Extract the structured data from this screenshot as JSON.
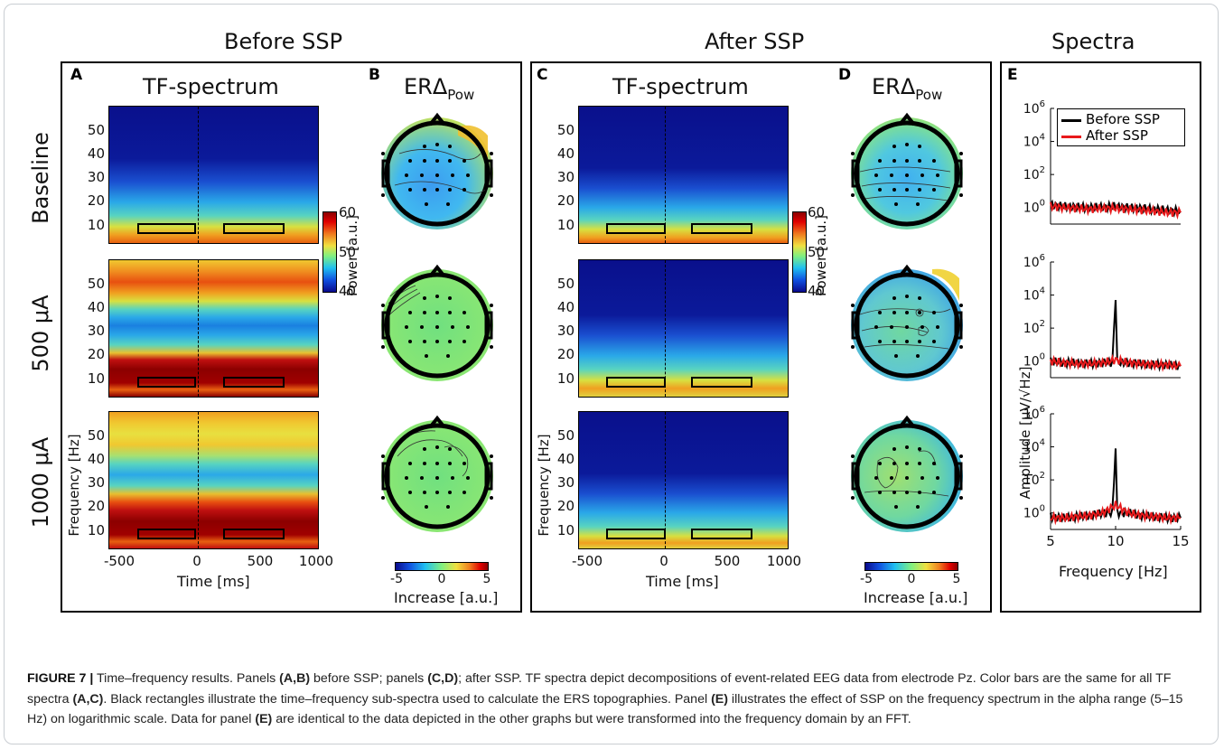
{
  "sections": {
    "before": "Before SSP",
    "after": "After SSP",
    "spectra": "Spectra"
  },
  "panels": {
    "A": "A",
    "B": "B",
    "C": "C",
    "D": "D",
    "E": "E",
    "tf_title": "TF-spectrum",
    "er_title_main": "ERΔ",
    "er_title_sub": "Pow"
  },
  "rows": [
    "Baseline",
    "500 μA",
    "1000 μA"
  ],
  "tf_axes": {
    "ylabel": "Frequency [Hz]",
    "xlabel": "Time [ms]",
    "yticks": [
      "50",
      "40",
      "30",
      "20",
      "10"
    ],
    "xticks": [
      "-500",
      "0",
      "500",
      "1000"
    ]
  },
  "power_colorbar": {
    "label": "Power [a.u.]",
    "ticks": [
      "60",
      "50",
      "40"
    ]
  },
  "increase_colorbar": {
    "label": "Increase [a.u.]",
    "ticks": [
      "-5",
      "0",
      "5"
    ]
  },
  "spectra_axes": {
    "ylabel": "Amplitude [μV/√Hz]",
    "xlabel": "Frequency [Hz]",
    "xticks": [
      "5",
      "10",
      "15"
    ],
    "ytick_base": "10",
    "ytick_exps": [
      "6",
      "4",
      "2",
      "0"
    ]
  },
  "legend": {
    "before": "Before SSP",
    "after": "After SSP"
  },
  "colors": {
    "before_line": "#000000",
    "after_line": "#e8191b",
    "jet_low": "#0a0a8c",
    "jet_high": "#8c0000"
  },
  "caption": {
    "label": "FIGURE 7 |",
    "seg1": " Time–frequency results. Panels ",
    "b1": "(A,B)",
    "seg2": " before SSP; panels ",
    "b2": "(C,D)",
    "seg3": "; after SSP. TF spectra depict decompositions of event-related EEG data from electrode Pz. Color bars are the same for all TF spectra ",
    "b3": "(A,C)",
    "seg4": ". Black rectangles illustrate the time–frequency sub-spectra used to calculate the ERS topographies. Panel ",
    "b4": "(E)",
    "seg5": " illustrates the effect of SSP on the frequency spectrum in the alpha range (5–15 Hz) on logarithmic scale. Data for panel ",
    "b5": "(E)",
    "seg6": " are identical to the data depicted in the other graphs but were transformed into the frequency domain by an FFT."
  },
  "chart_data": {
    "type": "line",
    "title": "Spectra",
    "xlabel": "Frequency [Hz]",
    "ylabel": "Amplitude [μV/√Hz]",
    "yscale": "log",
    "xlim": [
      5,
      15
    ],
    "ylim": [
      0.1,
      1000000
    ],
    "subplots": [
      {
        "row": "Baseline",
        "series": [
          {
            "name": "Before SSP",
            "x": [
              5,
              6,
              7,
              8,
              9,
              10,
              11,
              12,
              13,
              14,
              15
            ],
            "values": [
              1.5,
              1.2,
              1.1,
              1.0,
              1.1,
              1.2,
              1.0,
              0.9,
              0.8,
              0.7,
              0.6
            ]
          },
          {
            "name": "After SSP",
            "x": [
              5,
              6,
              7,
              8,
              9,
              10,
              11,
              12,
              13,
              14,
              15
            ],
            "values": [
              1.2,
              1.0,
              0.9,
              0.8,
              0.9,
              0.9,
              0.8,
              0.7,
              0.6,
              0.5,
              0.5
            ]
          }
        ]
      },
      {
        "row": "500 μA",
        "series": [
          {
            "name": "Before SSP",
            "x": [
              5,
              6,
              7,
              8,
              9,
              10,
              11,
              12,
              13,
              14,
              15
            ],
            "values": [
              1.0,
              0.8,
              0.8,
              0.7,
              0.8,
              5000,
              0.8,
              0.7,
              0.6,
              0.6,
              0.5
            ]
          },
          {
            "name": "After SSP",
            "x": [
              5,
              6,
              7,
              8,
              9,
              10,
              11,
              12,
              13,
              14,
              15
            ],
            "values": [
              1.0,
              0.8,
              0.7,
              0.7,
              0.8,
              1.2,
              0.8,
              0.7,
              0.6,
              0.6,
              0.5
            ]
          }
        ]
      },
      {
        "row": "1000 μA",
        "series": [
          {
            "name": "Before SSP",
            "x": [
              5,
              6,
              7,
              8,
              9,
              10,
              11,
              12,
              13,
              14,
              15
            ],
            "values": [
              0.6,
              0.5,
              0.6,
              0.7,
              1.0,
              8000,
              1.0,
              0.7,
              0.6,
              0.5,
              0.5
            ]
          },
          {
            "name": "After SSP",
            "x": [
              5,
              6,
              7,
              8,
              9,
              10,
              11,
              12,
              13,
              14,
              15
            ],
            "values": [
              0.5,
              0.5,
              0.6,
              0.7,
              1.0,
              3.0,
              1.0,
              0.7,
              0.6,
              0.5,
              0.5
            ]
          }
        ]
      }
    ]
  }
}
